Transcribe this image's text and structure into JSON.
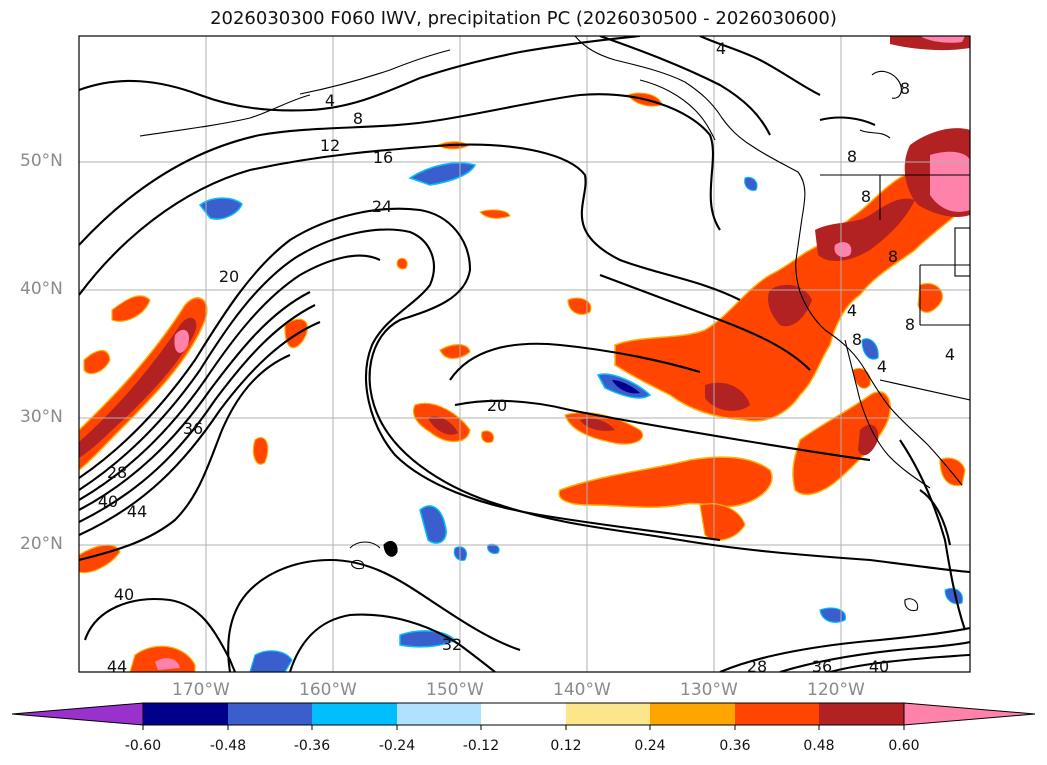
{
  "title": "2026030300 F060 IWV, precipitation PC (2026030500 - 2026030600)",
  "latitude_labels": [
    "50°N",
    "40°N",
    "30°N",
    "20°N"
  ],
  "longitude_labels": [
    "170°W",
    "160°W",
    "150°W",
    "140°W",
    "130°W",
    "120°W"
  ],
  "contour_labels": [
    "4",
    "8",
    "12",
    "16",
    "24",
    "20",
    "20",
    "36",
    "28",
    "40",
    "44",
    "40",
    "44",
    "32",
    "28",
    "36",
    "40",
    "4",
    "8",
    "8",
    "8",
    "8",
    "8",
    "8",
    "4",
    "4",
    "4"
  ],
  "colorbar": {
    "tick_labels": [
      "-0.60",
      "-0.48",
      "-0.36",
      "-0.24",
      "-0.12",
      "0.12",
      "0.24",
      "0.36",
      "0.48",
      "0.60"
    ],
    "colors": [
      "#9932cc",
      "#00008b",
      "#3a5fcd",
      "#00bfff",
      "#b0e2ff",
      "#ffffff",
      "#fde68a",
      "#ffa500",
      "#ff4500",
      "#b22222",
      "#ff82ab"
    ]
  },
  "colors": {
    "coastline": "#000000",
    "grid": "#b0b0b0",
    "contour": "#000000",
    "label": "#8a8a8a"
  }
}
